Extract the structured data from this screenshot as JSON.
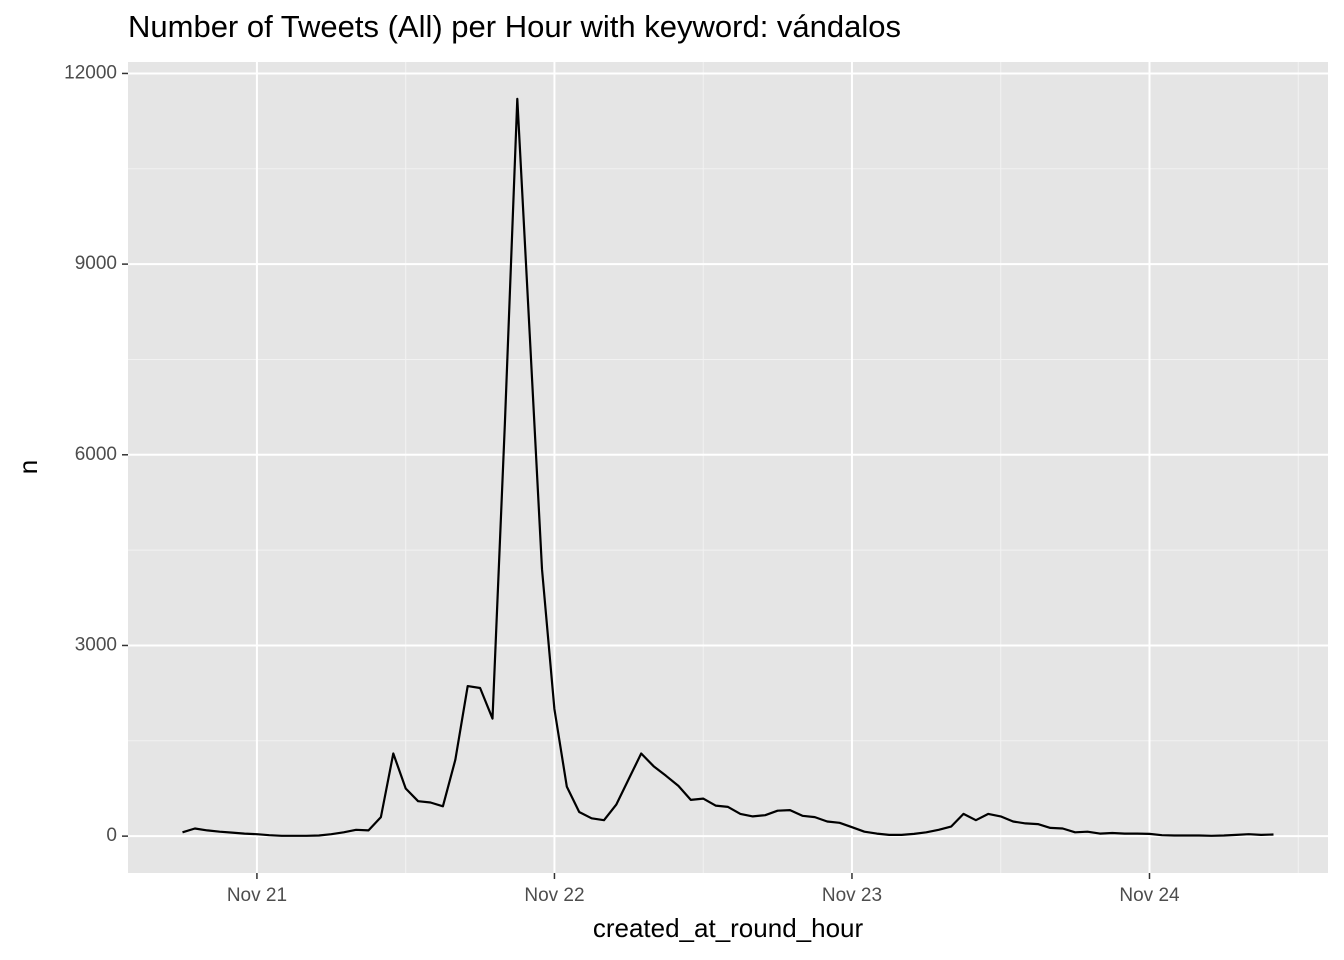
{
  "chart_data": {
    "type": "line",
    "title": "Number of Tweets (All) per Hour with keyword: vándalos",
    "x_label": "created_at_round_hour",
    "y_label": "n",
    "x": [
      -6,
      -5,
      -4,
      -3,
      -2,
      -1,
      0,
      1,
      2,
      3,
      4,
      5,
      6,
      7,
      8,
      9,
      10,
      11,
      12,
      13,
      14,
      15,
      16,
      17,
      18,
      19,
      20,
      21,
      22,
      23,
      24,
      25,
      26,
      27,
      28,
      29,
      30,
      31,
      32,
      33,
      34,
      35,
      36,
      37,
      38,
      39,
      40,
      41,
      42,
      43,
      44,
      45,
      46,
      47,
      48,
      49,
      50,
      51,
      52,
      53,
      54,
      55,
      56,
      57,
      58,
      59,
      60,
      61,
      62,
      63,
      64,
      65,
      66,
      67,
      68,
      69,
      70,
      71,
      72,
      73,
      74,
      75,
      76,
      77,
      78,
      79,
      80,
      81,
      82
    ],
    "series": [
      {
        "name": "n",
        "color": "#000000",
        "values": [
          60,
          120,
          90,
          70,
          55,
          40,
          30,
          15,
          5,
          5,
          5,
          10,
          30,
          60,
          100,
          90,
          300,
          1300,
          750,
          550,
          530,
          470,
          1200,
          2360,
          2330,
          1850,
          6500,
          11600,
          7900,
          4200,
          2000,
          780,
          380,
          280,
          250,
          500,
          900,
          1300,
          1100,
          950,
          790,
          570,
          590,
          480,
          460,
          350,
          310,
          330,
          400,
          410,
          320,
          300,
          230,
          210,
          140,
          70,
          40,
          20,
          20,
          35,
          60,
          100,
          150,
          350,
          250,
          350,
          310,
          230,
          200,
          190,
          130,
          120,
          60,
          70,
          40,
          50,
          40,
          40,
          35,
          15,
          10,
          10,
          10,
          5,
          10,
          20,
          30,
          20,
          25
        ]
      }
    ],
    "xlim": [
      -10.4,
      86.4
    ],
    "xticks": [
      {
        "value": 0,
        "label": "Nov 21"
      },
      {
        "value": 24,
        "label": "Nov 22"
      },
      {
        "value": 48,
        "label": "Nov 23"
      },
      {
        "value": 72,
        "label": "Nov 24"
      }
    ],
    "ylim": [
      -580,
      12180
    ],
    "yticks": [
      0,
      3000,
      6000,
      9000,
      12000
    ],
    "grid": true
  }
}
